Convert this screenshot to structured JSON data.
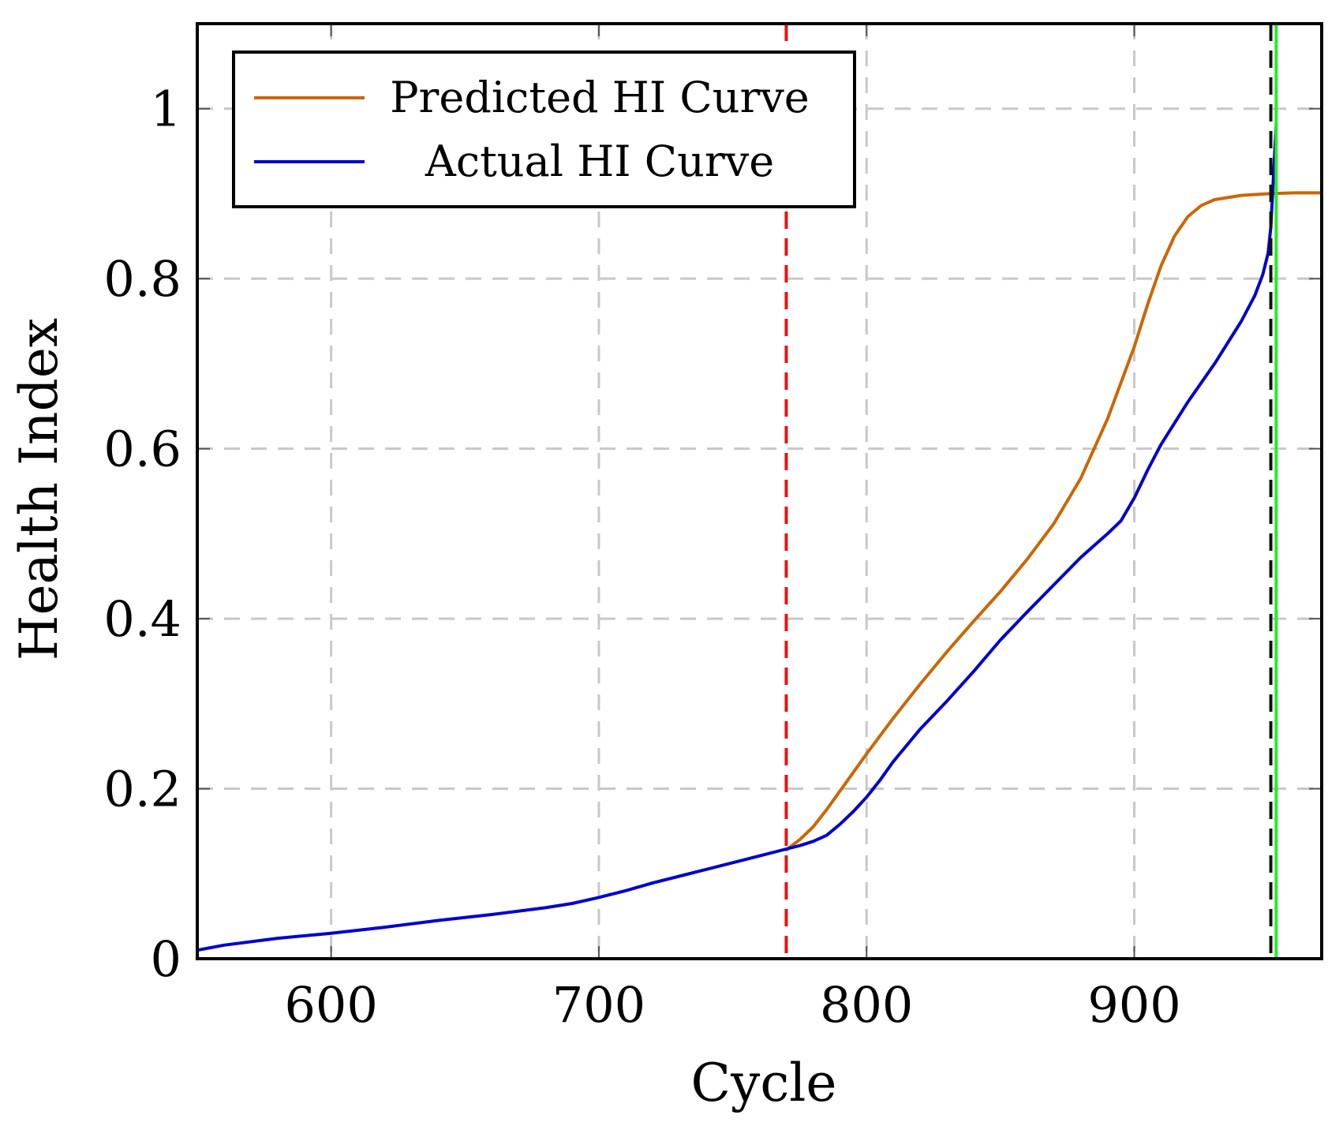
{
  "chart_data": {
    "type": "line",
    "xlabel": "Cycle",
    "ylabel": "Health Index",
    "xlim": [
      550,
      970
    ],
    "ylim": [
      0,
      1.1
    ],
    "x_ticks": [
      600,
      700,
      800,
      900
    ],
    "x_tick_labels": [
      "600",
      "700",
      "800",
      "900"
    ],
    "y_ticks": [
      0,
      0.2,
      0.4,
      0.6,
      0.8,
      1
    ],
    "y_tick_labels": [
      "0",
      "0.2",
      "0.4",
      "0.6",
      "0.8",
      "1"
    ],
    "grid": true,
    "legend_position": "top-left",
    "series": [
      {
        "name": "Predicted HI Curve",
        "color": "#cc6600",
        "x": [
          770,
          775,
          780,
          785,
          790,
          795,
          800,
          810,
          820,
          830,
          840,
          850,
          860,
          870,
          880,
          890,
          900,
          905,
          910,
          915,
          920,
          925,
          930,
          940,
          950,
          960,
          970
        ],
        "y": [
          0.128,
          0.14,
          0.155,
          0.175,
          0.197,
          0.219,
          0.241,
          0.283,
          0.323,
          0.361,
          0.397,
          0.432,
          0.47,
          0.512,
          0.565,
          0.635,
          0.72,
          0.77,
          0.815,
          0.85,
          0.873,
          0.886,
          0.893,
          0.898,
          0.9,
          0.901,
          0.901
        ]
      },
      {
        "name": "Actual HI Curve",
        "color": "#0000cc",
        "x": [
          550,
          560,
          580,
          600,
          620,
          640,
          660,
          680,
          690,
          700,
          710,
          720,
          730,
          740,
          750,
          760,
          770,
          775,
          780,
          785,
          790,
          795,
          800,
          805,
          810,
          820,
          830,
          840,
          850,
          860,
          870,
          880,
          890,
          895,
          900,
          905,
          910,
          920,
          930,
          940,
          945,
          948,
          950,
          951,
          952,
          953
        ],
        "y": [
          0.01,
          0.016,
          0.024,
          0.03,
          0.037,
          0.045,
          0.052,
          0.06,
          0.065,
          0.072,
          0.08,
          0.089,
          0.097,
          0.105,
          0.113,
          0.121,
          0.129,
          0.133,
          0.138,
          0.145,
          0.158,
          0.173,
          0.19,
          0.21,
          0.232,
          0.27,
          0.303,
          0.338,
          0.375,
          0.408,
          0.44,
          0.472,
          0.5,
          0.515,
          0.542,
          0.575,
          0.605,
          0.655,
          0.7,
          0.75,
          0.78,
          0.805,
          0.83,
          0.86,
          0.92,
          0.98
        ]
      }
    ],
    "reference_lines": [
      {
        "name": "prediction-start",
        "x": 770,
        "color": "#ee1111",
        "style": "dashed"
      },
      {
        "name": "predicted-failure",
        "x": 951,
        "color": "#111111",
        "style": "dashed"
      },
      {
        "name": "actual-failure",
        "x": 953,
        "color": "#22ee22",
        "style": "solid"
      }
    ]
  }
}
